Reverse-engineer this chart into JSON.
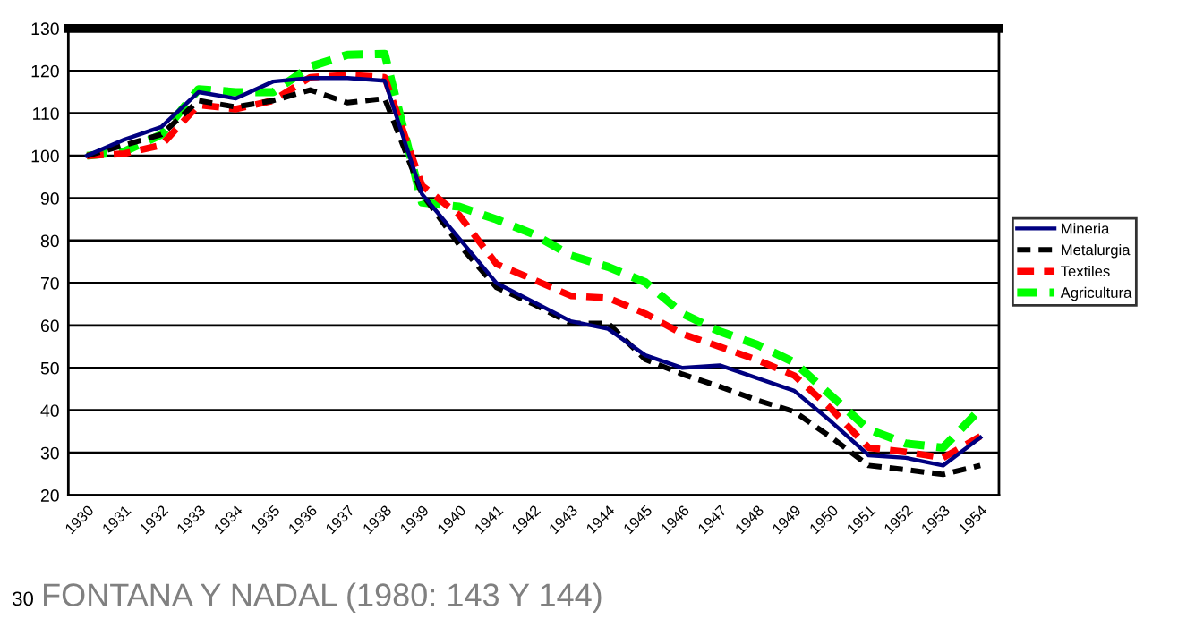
{
  "chart_data": {
    "type": "line",
    "categories": [
      "1930",
      "1931",
      "1932",
      "1933",
      "1934",
      "1935",
      "1936",
      "1937",
      "1938",
      "1939",
      "1940",
      "1941",
      "1942",
      "1943",
      "1944",
      "1945",
      "1946",
      "1947",
      "1948",
      "1949",
      "1950",
      "1951",
      "1952",
      "1953",
      "1954"
    ],
    "series": [
      {
        "name": "Mineria",
        "color": "#000080",
        "line_style": "solid",
        "values": [
          100,
          103.8,
          106.8,
          115,
          113.5,
          117.5,
          118.3,
          118.3,
          117.7,
          91,
          80.5,
          70,
          65.5,
          61,
          59.2,
          53,
          50,
          50.6,
          47.6,
          44.6,
          37.3,
          29.4,
          28.8,
          27,
          33.6
        ]
      },
      {
        "name": "Metalurgia",
        "color": "#000000",
        "line_style": "dashed",
        "values": [
          100,
          102.5,
          105,
          113,
          111.5,
          113,
          115.5,
          112.5,
          113.5,
          91,
          79,
          69,
          65,
          60.5,
          60.5,
          52,
          48.5,
          45.6,
          42.4,
          39.7,
          33.6,
          27,
          26,
          24.9,
          27
        ]
      },
      {
        "name": "Textiles",
        "color": "#ff0000",
        "line_style": "dashed",
        "values": [
          100,
          100.5,
          102.5,
          112,
          111,
          113,
          118.5,
          119,
          118.5,
          93,
          86,
          74.5,
          70.8,
          67,
          66.5,
          62.8,
          58,
          55,
          51.9,
          48.2,
          40.3,
          31.2,
          30.2,
          28.8,
          33.9
        ]
      },
      {
        "name": "Agricultura",
        "color": "#00ff00",
        "line_style": "dashed",
        "values": [
          100,
          101,
          105,
          115.7,
          115,
          115,
          121,
          123.8,
          124,
          89,
          88,
          85,
          81.5,
          76.5,
          73.8,
          70.2,
          62.8,
          58.6,
          55.5,
          51.3,
          43.4,
          35.5,
          32.2,
          31.2,
          40.3
        ]
      }
    ],
    "ylim": [
      20,
      130
    ],
    "yticks": [
      20,
      30,
      40,
      50,
      60,
      70,
      80,
      90,
      100,
      110,
      120,
      130
    ],
    "grid": "y",
    "legend": "right",
    "marker": "none",
    "ref_lines": [
      {
        "axis": "y",
        "value": 130,
        "color": "#000000"
      }
    ],
    "annotations": [
      "30",
      "FONTANA Y NADAL (1980: 143 Y 144)"
    ]
  }
}
